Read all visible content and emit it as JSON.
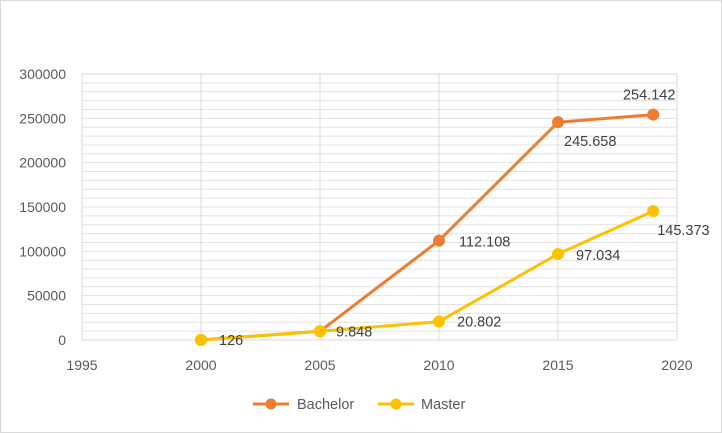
{
  "chart_data": {
    "type": "line",
    "title": "",
    "xlabel": "",
    "ylabel": "",
    "xlim": [
      1995,
      2020
    ],
    "ylim": [
      0,
      300000
    ],
    "x_ticks": [
      "1995",
      "2000",
      "2005",
      "2010",
      "2015",
      "2020"
    ],
    "y_ticks": [
      "0",
      "50000",
      "100000",
      "150000",
      "200000",
      "250000",
      "300000"
    ],
    "grid": true,
    "legend_position": "bottom",
    "series": [
      {
        "name": "Bachelor",
        "color": "#ED7D31",
        "x": [
          2000,
          2005,
          2010,
          2015,
          2019
        ],
        "values": [
          126,
          9848,
          112108,
          245658,
          254142
        ],
        "labels": [
          "",
          "",
          "112.108",
          "245.658",
          "254.142"
        ]
      },
      {
        "name": "Master",
        "color": "#FFC000",
        "x": [
          2000,
          2005,
          2010,
          2015,
          2019
        ],
        "values": [
          126,
          9848,
          20802,
          97034,
          145373
        ],
        "labels": [
          "126",
          "9.848",
          "20.802",
          "97.034",
          "145.373"
        ]
      }
    ]
  }
}
